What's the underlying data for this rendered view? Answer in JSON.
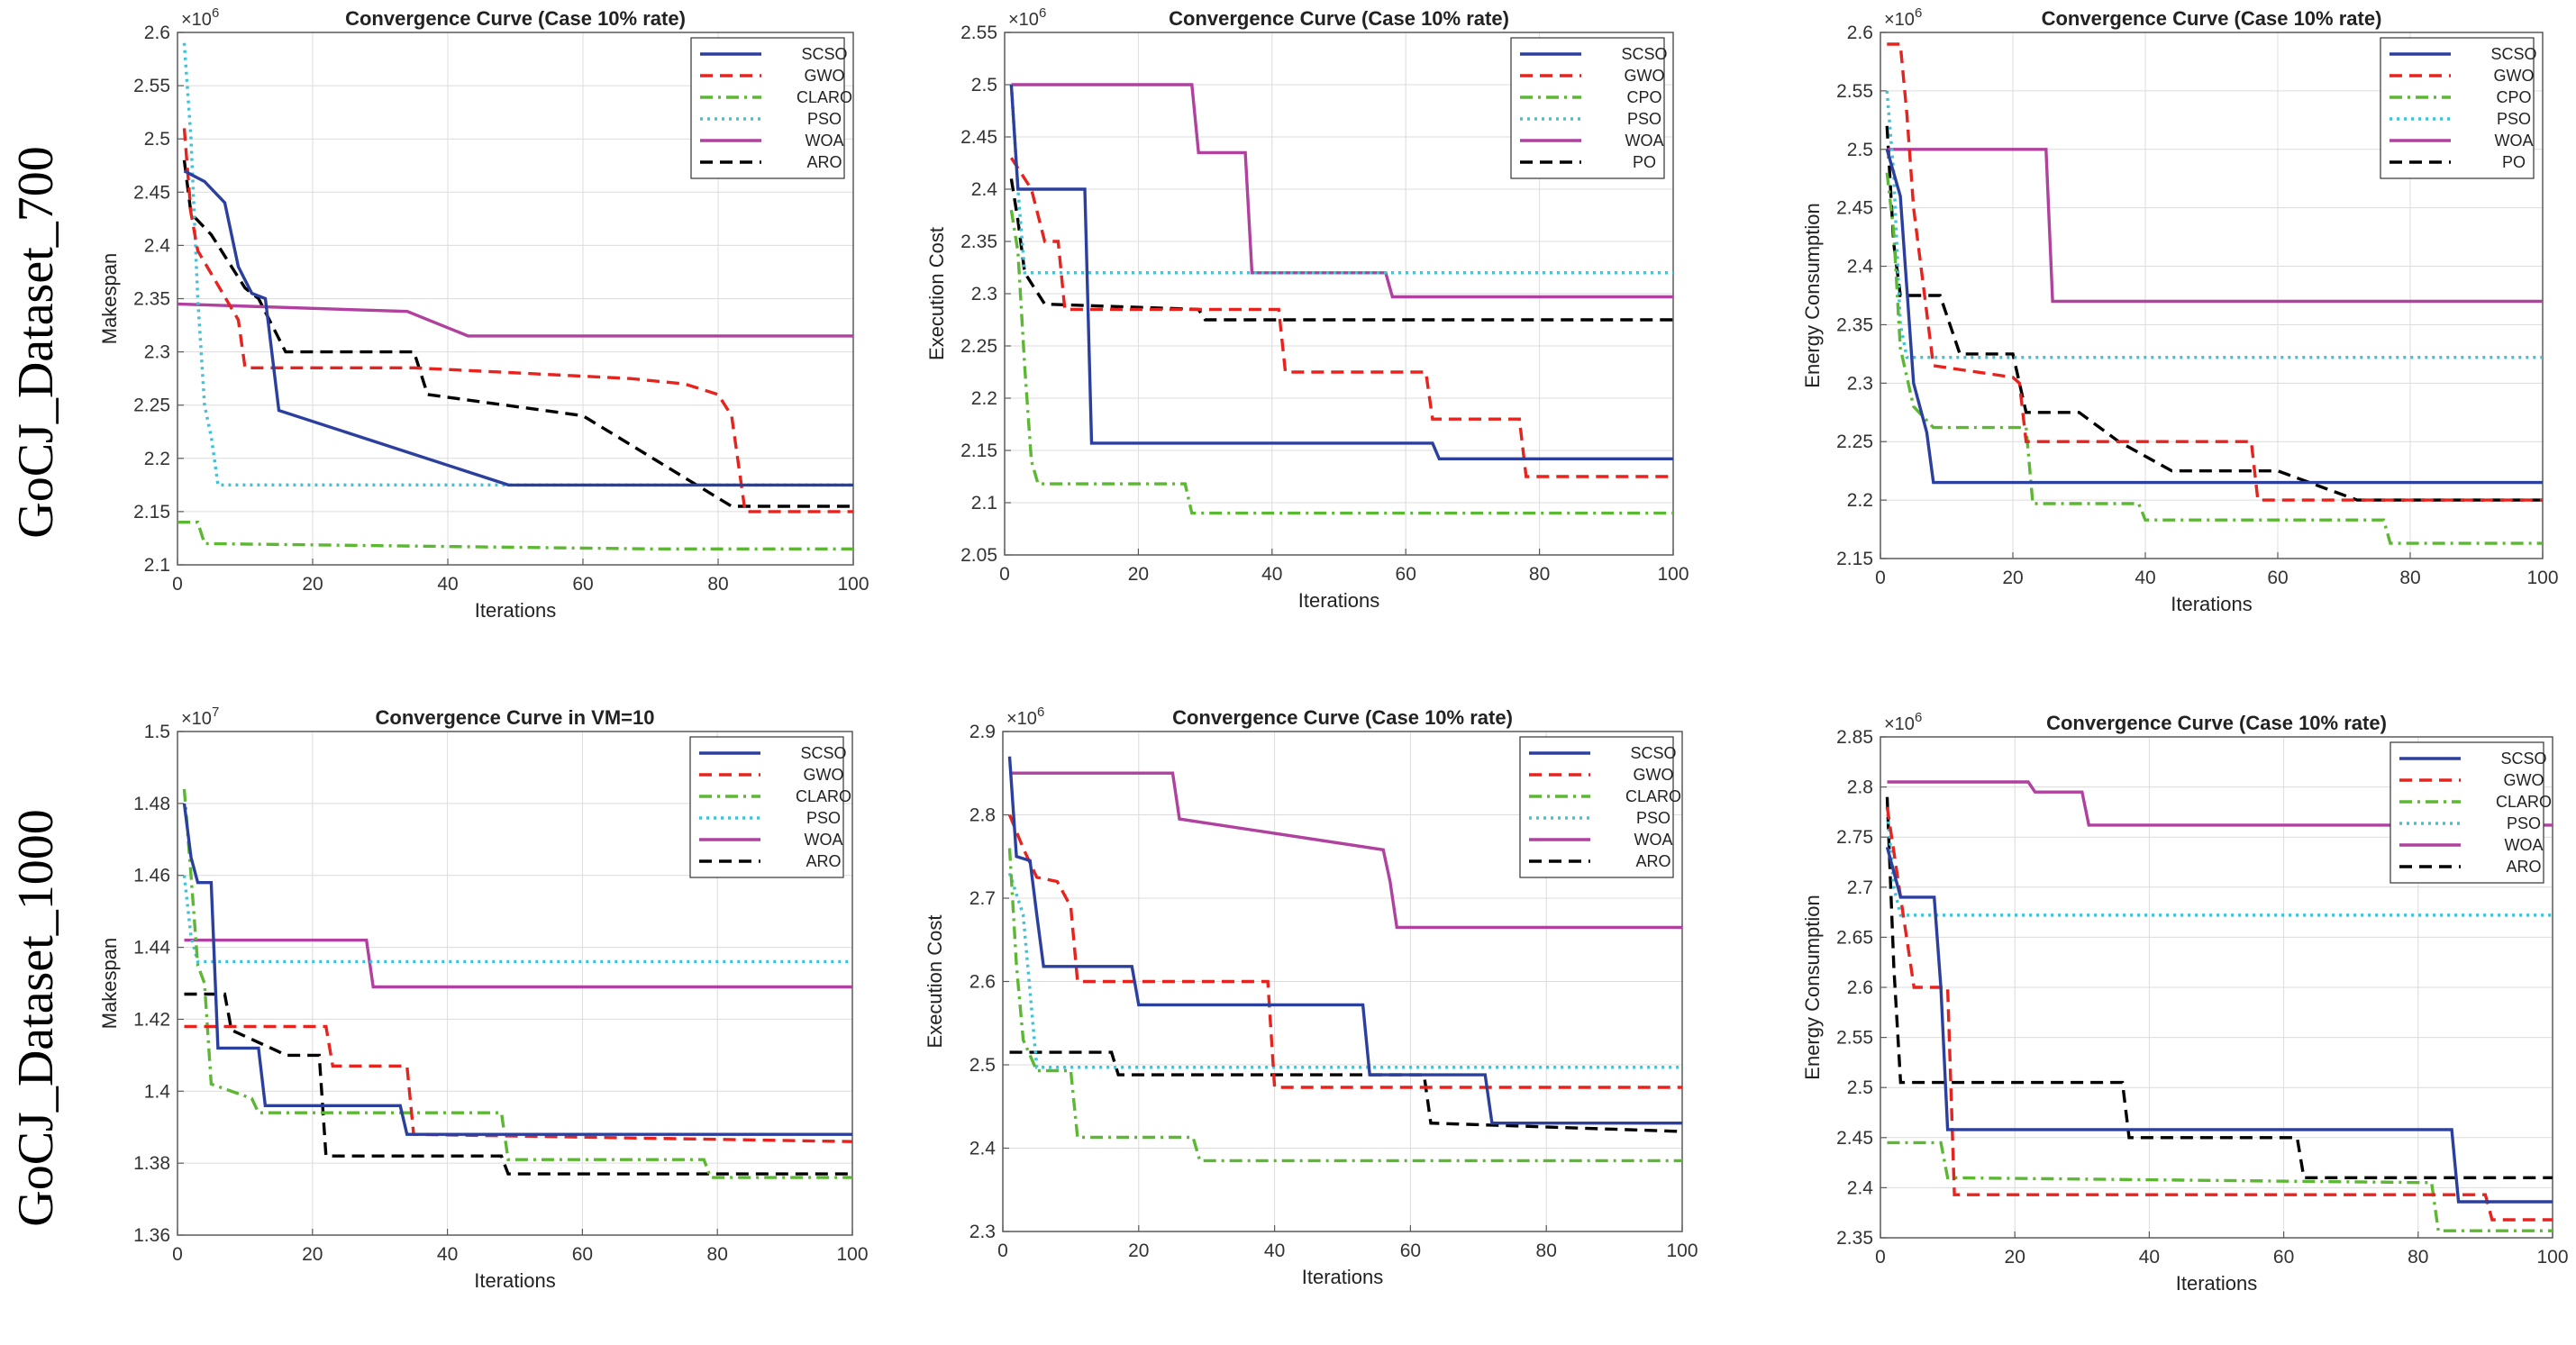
{
  "row_labels": [
    "GoCJ_Dataset_700",
    "GoCJ_Dataset_1000"
  ],
  "styles": {
    "SCSO": {
      "color": "#2b3f9e",
      "dash": "solid"
    },
    "GWO": {
      "color": "#e8221d",
      "dash": "dash"
    },
    "CLARO": {
      "color": "#5cb833",
      "dash": "dashdot"
    },
    "CPO": {
      "color": "#5cb833",
      "dash": "dashdot"
    },
    "PSO": {
      "color": "#3fc3d6",
      "dash": "dot"
    },
    "WOA": {
      "color": "#b0419e",
      "dash": "solid"
    },
    "ARO": {
      "color": "#000000",
      "dash": "dash"
    },
    "PO": {
      "color": "#000000",
      "dash": "dash"
    }
  },
  "chart_data": [
    {
      "type": "line",
      "row": 0,
      "col": 0,
      "title": "Convergence Curve (Case 10% rate)",
      "xlabel": "Iterations",
      "ylabel": "Makespan",
      "exponent": "×10",
      "exponent_power": "6",
      "xlim": [
        0,
        100
      ],
      "ylim": [
        2.1,
        2.6
      ],
      "xticks": [
        0,
        20,
        40,
        60,
        80,
        100
      ],
      "xticklabels": [
        "0",
        "20",
        "40",
        "60",
        "80",
        "100"
      ],
      "yticks": [
        2.1,
        2.15,
        2.2,
        2.25,
        2.3,
        2.35,
        2.4,
        2.45,
        2.5,
        2.55,
        2.6
      ],
      "yticklabels": [
        "2.1",
        "2.15",
        "2.2",
        "2.25",
        "2.3",
        "2.35",
        "2.4",
        "2.45",
        "2.5",
        "2.55",
        "2.6"
      ],
      "series": [
        {
          "name": "SCSO",
          "x": [
            1,
            4,
            7,
            9,
            11,
            13,
            15,
            49,
            100
          ],
          "y": [
            2.47,
            2.46,
            2.44,
            2.38,
            2.355,
            2.35,
            2.245,
            2.175,
            2.175
          ]
        },
        {
          "name": "GWO",
          "x": [
            1,
            2,
            3,
            9,
            10,
            35,
            67,
            75,
            80,
            82,
            84,
            100
          ],
          "y": [
            2.51,
            2.43,
            2.395,
            2.33,
            2.285,
            2.285,
            2.275,
            2.27,
            2.26,
            2.24,
            2.15,
            2.15
          ]
        },
        {
          "name": "CLARO",
          "x": [
            0,
            3,
            4,
            70,
            100
          ],
          "y": [
            2.14,
            2.14,
            2.12,
            2.115,
            2.115
          ]
        },
        {
          "name": "PSO",
          "x": [
            1,
            2,
            3,
            4,
            5,
            6,
            100
          ],
          "y": [
            2.59,
            2.5,
            2.35,
            2.25,
            2.22,
            2.175,
            2.175
          ]
        },
        {
          "name": "WOA",
          "x": [
            0,
            34,
            43,
            100
          ],
          "y": [
            2.345,
            2.338,
            2.315,
            2.315
          ]
        },
        {
          "name": "ARO",
          "x": [
            1,
            2,
            5,
            10,
            12,
            16,
            35,
            37,
            60,
            82,
            100
          ],
          "y": [
            2.48,
            2.43,
            2.41,
            2.36,
            2.35,
            2.3,
            2.3,
            2.26,
            2.24,
            2.155,
            2.155
          ]
        }
      ]
    },
    {
      "type": "line",
      "row": 0,
      "col": 1,
      "title": "Convergence Curve (Case 10% rate)",
      "xlabel": "Iterations",
      "ylabel": "Execution Cost",
      "exponent": "×10",
      "exponent_power": "6",
      "xlim": [
        0,
        100
      ],
      "ylim": [
        2.05,
        2.55
      ],
      "xticks": [
        0,
        20,
        40,
        60,
        80,
        100
      ],
      "xticklabels": [
        "0",
        "20",
        "40",
        "60",
        "80",
        "100"
      ],
      "yticks": [
        2.05,
        2.1,
        2.15,
        2.2,
        2.25,
        2.3,
        2.35,
        2.4,
        2.45,
        2.5,
        2.55
      ],
      "yticklabels": [
        "2.05",
        "2.1",
        "2.15",
        "2.2",
        "2.25",
        "2.3",
        "2.35",
        "2.4",
        "2.45",
        "2.5",
        "2.55"
      ],
      "series": [
        {
          "name": "SCSO",
          "x": [
            1,
            2,
            12,
            13,
            64,
            65,
            100
          ],
          "y": [
            2.5,
            2.4,
            2.4,
            2.157,
            2.157,
            2.142,
            2.142
          ]
        },
        {
          "name": "GWO",
          "x": [
            1,
            4,
            6,
            8,
            9,
            29,
            41,
            42,
            63,
            64,
            77,
            78,
            100
          ],
          "y": [
            2.43,
            2.4,
            2.35,
            2.35,
            2.285,
            2.285,
            2.285,
            2.225,
            2.225,
            2.18,
            2.18,
            2.125,
            2.125
          ]
        },
        {
          "name": "CPO",
          "x": [
            1,
            2,
            3,
            4,
            5,
            27,
            28,
            100
          ],
          "y": [
            2.38,
            2.34,
            2.23,
            2.14,
            2.118,
            2.118,
            2.09,
            2.09
          ]
        },
        {
          "name": "PSO",
          "x": [
            1,
            2,
            3,
            100
          ],
          "y": [
            2.5,
            2.4,
            2.32,
            2.32
          ]
        },
        {
          "name": "WOA",
          "x": [
            1,
            28,
            29,
            36,
            37,
            57,
            58,
            100
          ],
          "y": [
            2.5,
            2.5,
            2.435,
            2.435,
            2.32,
            2.32,
            2.297,
            2.297
          ]
        },
        {
          "name": "PO",
          "x": [
            1,
            2,
            3,
            6,
            29,
            30,
            100
          ],
          "y": [
            2.41,
            2.37,
            2.32,
            2.29,
            2.285,
            2.275,
            2.275
          ]
        }
      ]
    },
    {
      "type": "line",
      "row": 0,
      "col": 2,
      "title": "Convergence Curve (Case 10% rate)",
      "xlabel": "Iterations",
      "ylabel": "Energy Consumption",
      "exponent": "×10",
      "exponent_power": "6",
      "xlim": [
        0,
        100
      ],
      "ylim": [
        2.15,
        2.6
      ],
      "xticks": [
        0,
        20,
        40,
        60,
        80,
        100
      ],
      "xticklabels": [
        "0",
        "20",
        "40",
        "60",
        "80",
        "100"
      ],
      "yticks": [
        2.15,
        2.2,
        2.25,
        2.3,
        2.35,
        2.4,
        2.45,
        2.5,
        2.55,
        2.6
      ],
      "yticklabels": [
        "2.15",
        "2.2",
        "2.25",
        "2.3",
        "2.35",
        "2.4",
        "2.45",
        "2.5",
        "2.55",
        "2.6"
      ],
      "series": [
        {
          "name": "SCSO",
          "x": [
            1,
            3,
            5,
            7,
            8,
            100
          ],
          "y": [
            2.5,
            2.46,
            2.3,
            2.258,
            2.215,
            2.215
          ]
        },
        {
          "name": "GWO",
          "x": [
            1,
            3,
            4,
            5,
            8,
            20,
            21,
            22,
            56,
            57,
            100
          ],
          "y": [
            2.59,
            2.59,
            2.53,
            2.45,
            2.315,
            2.305,
            2.3,
            2.25,
            2.25,
            2.2,
            2.2
          ]
        },
        {
          "name": "CPO",
          "x": [
            1,
            2,
            3,
            5,
            8,
            22,
            23,
            39,
            40,
            76,
            77,
            100
          ],
          "y": [
            2.48,
            2.43,
            2.33,
            2.28,
            2.262,
            2.262,
            2.197,
            2.197,
            2.183,
            2.183,
            2.163,
            2.163
          ]
        },
        {
          "name": "PSO",
          "x": [
            1,
            2,
            3,
            4,
            100
          ],
          "y": [
            2.55,
            2.48,
            2.35,
            2.322,
            2.322
          ]
        },
        {
          "name": "WOA",
          "x": [
            1,
            25,
            26,
            100
          ],
          "y": [
            2.5,
            2.5,
            2.37,
            2.37
          ]
        },
        {
          "name": "PO",
          "x": [
            1,
            2,
            3,
            9,
            12,
            20,
            22,
            30,
            36,
            44,
            48,
            60,
            72,
            100
          ],
          "y": [
            2.52,
            2.42,
            2.375,
            2.375,
            2.325,
            2.325,
            2.275,
            2.275,
            2.25,
            2.225,
            2.225,
            2.225,
            2.2,
            2.2
          ]
        }
      ]
    },
    {
      "type": "line",
      "row": 1,
      "col": 0,
      "title": "Convergence Curve in VM=10",
      "xlabel": "Iterations",
      "ylabel": "Makespan",
      "exponent": "×10",
      "exponent_power": "7",
      "xlim": [
        0,
        100
      ],
      "ylim": [
        1.36,
        1.5
      ],
      "xticks": [
        0,
        20,
        40,
        60,
        80,
        100
      ],
      "xticklabels": [
        "0",
        "20",
        "40",
        "60",
        "80",
        "100"
      ],
      "yticks": [
        1.36,
        1.38,
        1.4,
        1.42,
        1.44,
        1.46,
        1.48,
        1.5
      ],
      "yticklabels": [
        "1.36",
        "1.38",
        "1.4",
        "1.42",
        "1.44",
        "1.46",
        "1.48",
        "1.5"
      ],
      "series": [
        {
          "name": "SCSO",
          "x": [
            1,
            2,
            3,
            5,
            6,
            12,
            13,
            33,
            34,
            100
          ],
          "y": [
            1.48,
            1.465,
            1.458,
            1.458,
            1.412,
            1.412,
            1.396,
            1.396,
            1.388,
            1.388
          ]
        },
        {
          "name": "GWO",
          "x": [
            1,
            3,
            22,
            23,
            34,
            35,
            100
          ],
          "y": [
            1.418,
            1.418,
            1.418,
            1.407,
            1.407,
            1.388,
            1.386
          ]
        },
        {
          "name": "CLARO",
          "x": [
            1,
            2,
            3,
            4,
            5,
            11,
            12,
            48,
            49,
            78,
            79,
            100
          ],
          "y": [
            1.484,
            1.46,
            1.435,
            1.43,
            1.402,
            1.398,
            1.394,
            1.394,
            1.381,
            1.381,
            1.376,
            1.376
          ]
        },
        {
          "name": "PSO",
          "x": [
            1,
            2,
            3,
            100
          ],
          "y": [
            1.46,
            1.443,
            1.436,
            1.436
          ]
        },
        {
          "name": "WOA",
          "x": [
            1,
            28,
            29,
            100
          ],
          "y": [
            1.442,
            1.442,
            1.429,
            1.429
          ]
        },
        {
          "name": "ARO",
          "x": [
            1,
            7,
            8,
            15,
            16,
            21,
            22,
            48,
            49,
            100
          ],
          "y": [
            1.427,
            1.427,
            1.417,
            1.411,
            1.41,
            1.41,
            1.382,
            1.382,
            1.377,
            1.377
          ]
        }
      ]
    },
    {
      "type": "line",
      "row": 1,
      "col": 1,
      "title": "Convergence Curve (Case 10% rate)",
      "xlabel": "Iterations",
      "ylabel": "Execution Cost",
      "exponent": "×10",
      "exponent_power": "6",
      "xlim": [
        0,
        100
      ],
      "ylim": [
        2.3,
        2.9
      ],
      "xticks": [
        0,
        20,
        40,
        60,
        80,
        100
      ],
      "xticklabels": [
        "0",
        "20",
        "40",
        "60",
        "80",
        "100"
      ],
      "yticks": [
        2.3,
        2.4,
        2.5,
        2.6,
        2.7,
        2.8,
        2.9
      ],
      "yticklabels": [
        "2.3",
        "2.4",
        "2.5",
        "2.6",
        "2.7",
        "2.8",
        "2.9"
      ],
      "series": [
        {
          "name": "SCSO",
          "x": [
            1,
            2,
            4,
            5,
            6,
            19,
            20,
            53,
            54,
            71,
            72,
            100
          ],
          "y": [
            2.87,
            2.75,
            2.745,
            2.68,
            2.618,
            2.618,
            2.572,
            2.572,
            2.488,
            2.488,
            2.43,
            2.43
          ]
        },
        {
          "name": "GWO",
          "x": [
            1,
            3,
            5,
            8,
            10,
            11,
            39,
            40,
            100
          ],
          "y": [
            2.8,
            2.76,
            2.725,
            2.72,
            2.69,
            2.6,
            2.6,
            2.473,
            2.473
          ]
        },
        {
          "name": "CLARO",
          "x": [
            1,
            2,
            3,
            5,
            10,
            11,
            28,
            29,
            100
          ],
          "y": [
            2.76,
            2.62,
            2.53,
            2.493,
            2.493,
            2.413,
            2.413,
            2.385,
            2.385
          ]
        },
        {
          "name": "PSO",
          "x": [
            1,
            3,
            5,
            100
          ],
          "y": [
            2.73,
            2.68,
            2.497,
            2.497
          ]
        },
        {
          "name": "WOA",
          "x": [
            1,
            25,
            26,
            56,
            57,
            58,
            100
          ],
          "y": [
            2.85,
            2.85,
            2.795,
            2.758,
            2.72,
            2.665,
            2.665
          ]
        },
        {
          "name": "ARO",
          "x": [
            1,
            16,
            17,
            62,
            63,
            100
          ],
          "y": [
            2.515,
            2.515,
            2.488,
            2.488,
            2.43,
            2.42
          ]
        }
      ]
    },
    {
      "type": "line",
      "row": 1,
      "col": 2,
      "title": "Convergence Curve (Case 10% rate)",
      "xlabel": "Iterations",
      "ylabel": "Energy Consumption",
      "exponent": "×10",
      "exponent_power": "6",
      "xlim": [
        0,
        100
      ],
      "ylim": [
        2.35,
        2.85
      ],
      "xticks": [
        0,
        20,
        40,
        60,
        80,
        100
      ],
      "xticklabels": [
        "0",
        "20",
        "40",
        "60",
        "80",
        "100"
      ],
      "yticks": [
        2.35,
        2.4,
        2.45,
        2.5,
        2.55,
        2.6,
        2.65,
        2.7,
        2.75,
        2.8,
        2.85
      ],
      "yticklabels": [
        "2.35",
        "2.4",
        "2.45",
        "2.5",
        "2.55",
        "2.6",
        "2.65",
        "2.7",
        "2.75",
        "2.8",
        "2.85"
      ],
      "series": [
        {
          "name": "SCSO",
          "x": [
            1,
            3,
            8,
            9,
            10,
            85,
            86,
            100
          ],
          "y": [
            2.74,
            2.69,
            2.69,
            2.6,
            2.458,
            2.458,
            2.386,
            2.386
          ]
        },
        {
          "name": "GWO",
          "x": [
            1,
            3,
            5,
            10,
            11,
            90,
            91,
            100
          ],
          "y": [
            2.78,
            2.69,
            2.6,
            2.6,
            2.393,
            2.393,
            2.368,
            2.368
          ]
        },
        {
          "name": "CLARO",
          "x": [
            1,
            9,
            10,
            82,
            83,
            100
          ],
          "y": [
            2.445,
            2.445,
            2.41,
            2.405,
            2.357,
            2.357
          ]
        },
        {
          "name": "PSO",
          "x": [
            1,
            2,
            3,
            100
          ],
          "y": [
            2.78,
            2.7,
            2.672,
            2.672
          ]
        },
        {
          "name": "WOA",
          "x": [
            1,
            22,
            23,
            30,
            31,
            100
          ],
          "y": [
            2.805,
            2.805,
            2.795,
            2.795,
            2.762,
            2.762
          ]
        },
        {
          "name": "ARO",
          "x": [
            1,
            2,
            3,
            36,
            37,
            62,
            63,
            100
          ],
          "y": [
            2.79,
            2.62,
            2.505,
            2.505,
            2.45,
            2.45,
            2.41,
            2.41
          ]
        }
      ]
    }
  ]
}
